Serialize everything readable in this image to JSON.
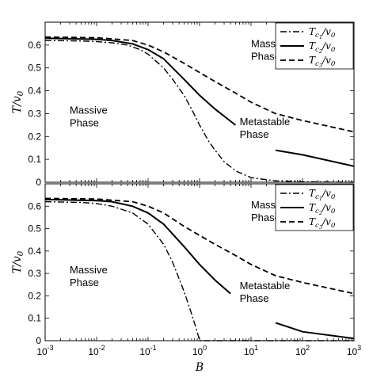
{
  "chart_data": [
    {
      "type": "line",
      "panel": "top",
      "xlabel": "",
      "ylabel": "T/v0",
      "xscale": "log",
      "xlim": [
        0.001,
        1000
      ],
      "ylim": [
        0,
        0.7
      ],
      "yticks": [
        "0",
        "0.1",
        "0.2",
        "0.3",
        "0.4",
        "0.5",
        "0.6"
      ],
      "legend_position": "top-right",
      "annotations": [
        {
          "text": [
            "Massless",
            "Phase"
          ],
          "x": 10,
          "y": 0.59
        },
        {
          "text": [
            "Massive",
            "Phase"
          ],
          "x": 0.003,
          "y": 0.3
        },
        {
          "text": [
            "Metastable",
            "Phase"
          ],
          "x": 6,
          "y": 0.25
        }
      ],
      "series": [
        {
          "name": "Tc1/v0",
          "style": "dashdot",
          "x": [
            0.001,
            0.005,
            0.01,
            0.02,
            0.04,
            0.07,
            0.1,
            0.2,
            0.3,
            0.5,
            0.7,
            1,
            1.5,
            2,
            3,
            5,
            10,
            30,
            100,
            1000
          ],
          "y": [
            0.62,
            0.618,
            0.615,
            0.61,
            0.6,
            0.58,
            0.56,
            0.5,
            0.45,
            0.38,
            0.32,
            0.25,
            0.18,
            0.14,
            0.09,
            0.05,
            0.02,
            0.006,
            0.002,
            0.0
          ]
        },
        {
          "name": "Tc2/v0",
          "style": "solid",
          "x": [
            0.001,
            0.01,
            0.02,
            0.05,
            0.1,
            0.2,
            0.3,
            0.5,
            1,
            2,
            5,
            30,
            100,
            1000
          ],
          "y": [
            0.63,
            0.625,
            0.62,
            0.605,
            0.58,
            0.54,
            0.5,
            0.45,
            0.38,
            0.32,
            0.25,
            0.14,
            0.12,
            0.07
          ],
          "gaps": [
            [
              5,
              30
            ]
          ]
        },
        {
          "name": "Tc3/v0",
          "style": "dashed",
          "x": [
            0.001,
            0.01,
            0.05,
            0.1,
            0.2,
            0.5,
            1,
            2,
            5,
            10,
            30,
            100,
            1000
          ],
          "y": [
            0.635,
            0.632,
            0.62,
            0.6,
            0.57,
            0.52,
            0.48,
            0.44,
            0.39,
            0.35,
            0.3,
            0.27,
            0.22
          ]
        }
      ]
    },
    {
      "type": "line",
      "panel": "bottom",
      "xlabel": "B",
      "ylabel": "T/v0",
      "xscale": "log",
      "xlim": [
        0.001,
        1000
      ],
      "ylim": [
        0,
        0.7
      ],
      "xticks": [
        "10",
        "10",
        "10",
        "10",
        "10",
        "10",
        "10"
      ],
      "xtick_exponents": [
        "-3",
        "-2",
        "-1",
        "0",
        "1",
        "2",
        "3"
      ],
      "yticks": [
        "0",
        "0.1",
        "0.2",
        "0.3",
        "0.4",
        "0.5",
        "0.6"
      ],
      "legend_position": "top-right",
      "annotations": [
        {
          "text": [
            "Massless",
            "Phase"
          ],
          "x": 10,
          "y": 0.59
        },
        {
          "text": [
            "Massive",
            "Phase"
          ],
          "x": 0.003,
          "y": 0.3
        },
        {
          "text": [
            "Metastable",
            "Phase"
          ],
          "x": 6,
          "y": 0.23
        }
      ],
      "series": [
        {
          "name": "Tc1/v0",
          "style": "dashdot",
          "x": [
            0.001,
            0.005,
            0.01,
            0.02,
            0.05,
            0.1,
            0.2,
            0.3,
            0.5,
            0.7,
            0.9,
            1,
            10,
            100,
            1000
          ],
          "y": [
            0.62,
            0.617,
            0.612,
            0.6,
            0.57,
            0.52,
            0.43,
            0.35,
            0.22,
            0.12,
            0.04,
            0.0,
            0.0,
            0.0,
            0.0
          ]
        },
        {
          "name": "Tc2/v0",
          "style": "solid",
          "x": [
            0.001,
            0.01,
            0.02,
            0.05,
            0.1,
            0.2,
            0.5,
            1,
            2,
            4,
            30,
            100,
            1000
          ],
          "y": [
            0.63,
            0.625,
            0.62,
            0.6,
            0.57,
            0.52,
            0.42,
            0.34,
            0.27,
            0.21,
            0.08,
            0.04,
            0.01
          ],
          "gaps": [
            [
              4,
              30
            ]
          ]
        },
        {
          "name": "Tc3/v0",
          "style": "dashed",
          "x": [
            0.001,
            0.01,
            0.05,
            0.1,
            0.2,
            0.5,
            1,
            2,
            5,
            10,
            30,
            100,
            1000
          ],
          "y": [
            0.635,
            0.632,
            0.62,
            0.6,
            0.57,
            0.51,
            0.47,
            0.43,
            0.38,
            0.34,
            0.29,
            0.26,
            0.21
          ]
        }
      ]
    }
  ]
}
